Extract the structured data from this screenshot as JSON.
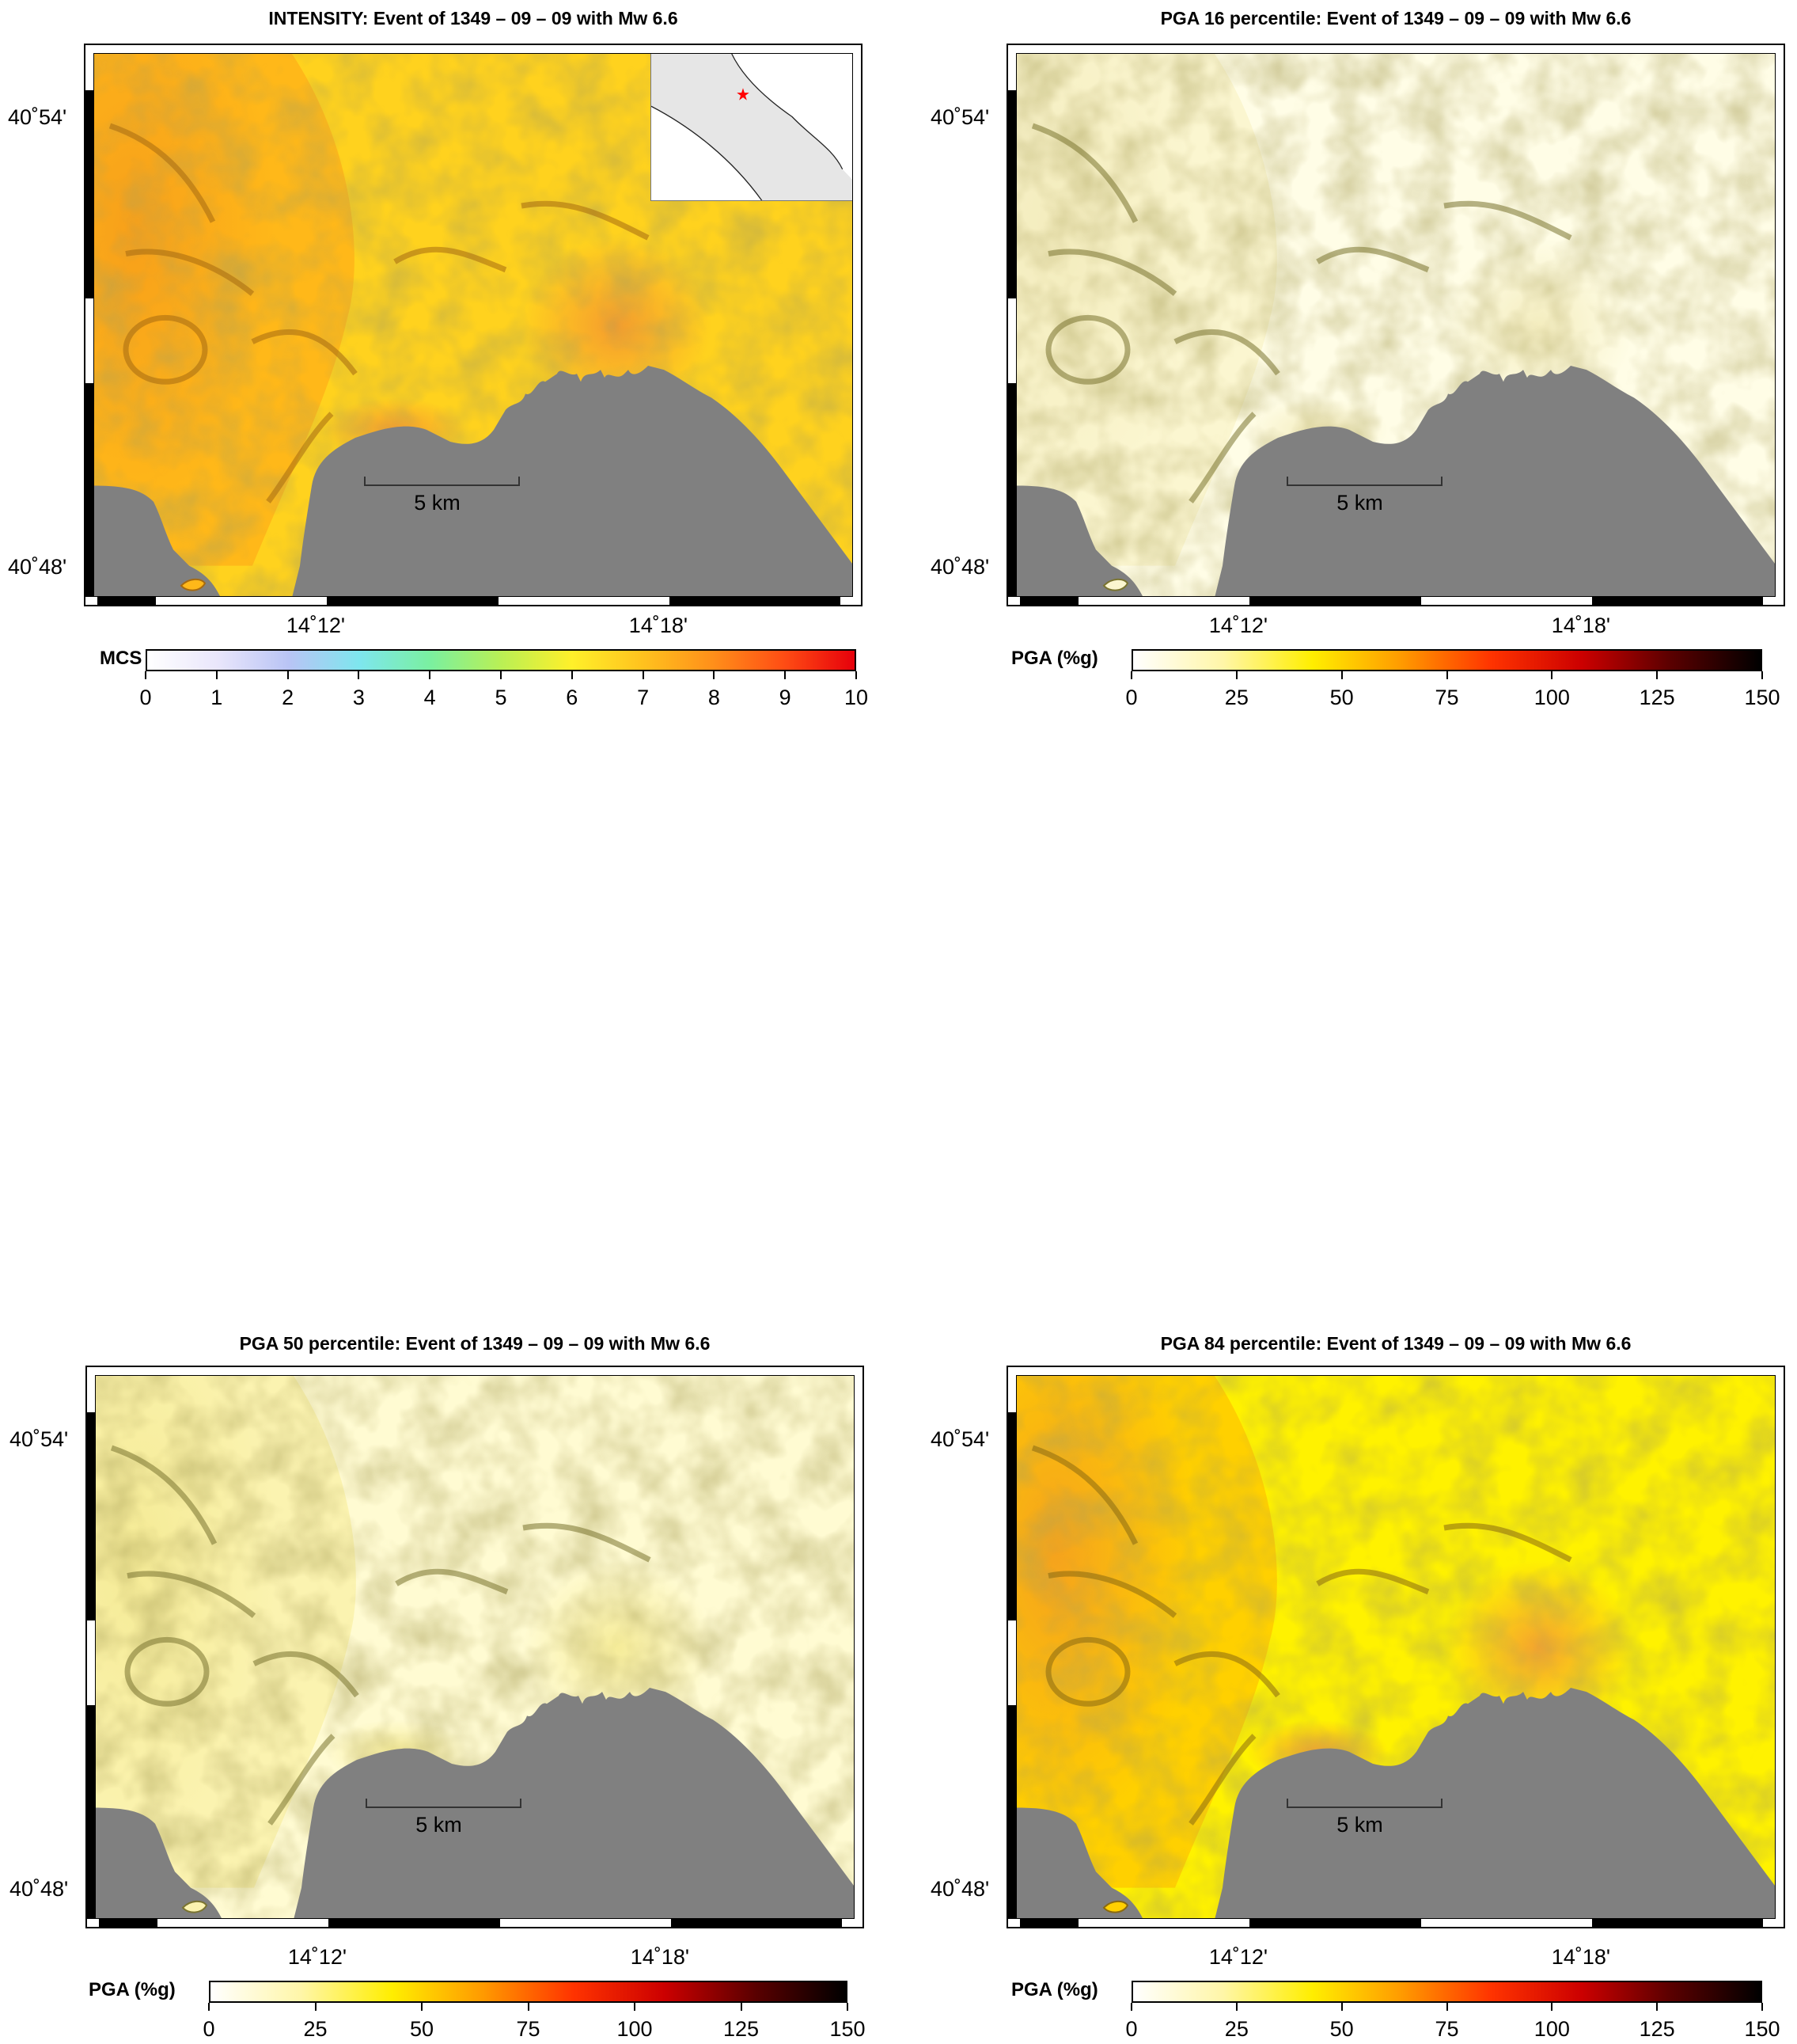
{
  "panels": [
    {
      "id": "intensity",
      "title": "INTENSITY: Event of 1349 – 09 – 09 with Mw 6.6",
      "lat_labels": [
        "40˚54'",
        "40˚48'"
      ],
      "lon_labels": [
        "14˚12'",
        "14˚18'"
      ],
      "scale_label": "5 km",
      "colorbar": {
        "title": "MCS",
        "ticks": [
          "0",
          "1",
          "2",
          "3",
          "4",
          "5",
          "6",
          "7",
          "8",
          "9",
          "10"
        ],
        "gradient": [
          "#ffffff",
          "#e9e6fb",
          "#b9c4f5",
          "#7ee6ee",
          "#7af0a0",
          "#b9f055",
          "#fff02a",
          "#ffc21e",
          "#ff8f1a",
          "#ff4d14",
          "#e6000b"
        ]
      },
      "palette": {
        "land_light": "#ffd21e",
        "land_mid": "#ffb819",
        "land_dark": "#f7a01a",
        "hot": "#f59a2e",
        "relief": "#a66a10"
      },
      "has_inset": true
    },
    {
      "id": "pga16",
      "title": "PGA 16 percentile: Event of 1349 – 09 – 09 with Mw 6.6",
      "lat_labels": [
        "40˚54'",
        "40˚48'"
      ],
      "lon_labels": [
        "14˚12'",
        "14˚18'"
      ],
      "scale_label": "5 km",
      "colorbar": {
        "title": "PGA (%g)",
        "ticks": [
          "0",
          "25",
          "50",
          "75",
          "100",
          "125",
          "150"
        ],
        "gradient": [
          "#ffffff",
          "#fff6a8",
          "#ffee00",
          "#ff9a00",
          "#ff3300",
          "#cc0000",
          "#5a0000",
          "#000000"
        ]
      },
      "palette": {
        "land_light": "#fffde6",
        "land_mid": "#fbf6d0",
        "land_dark": "#f3ecbd",
        "hot": "#f3ecbd",
        "relief": "#7a7430"
      },
      "has_inset": false
    },
    {
      "id": "pga50",
      "title": "PGA 50 percentile: Event of 1349 – 09 – 09 with Mw 6.6",
      "lat_labels": [
        "40˚54'",
        "40˚48'"
      ],
      "lon_labels": [
        "14˚12'",
        "14˚18'"
      ],
      "scale_label": "5 km",
      "colorbar": {
        "title": "PGA (%g)",
        "ticks": [
          "0",
          "25",
          "50",
          "75",
          "100",
          "125",
          "150"
        ],
        "gradient": [
          "#ffffff",
          "#fff6a8",
          "#ffee00",
          "#ff9a00",
          "#ff3300",
          "#cc0000",
          "#5a0000",
          "#000000"
        ]
      },
      "palette": {
        "land_light": "#fffbd2",
        "land_mid": "#fbf3b0",
        "land_dark": "#f5eb96",
        "hot": "#f5eb96",
        "relief": "#7a7430"
      },
      "has_inset": false
    },
    {
      "id": "pga84",
      "title": "PGA 84 percentile: Event of 1349 – 09 – 09 with Mw 6.6",
      "lat_labels": [
        "40˚54'",
        "40˚48'"
      ],
      "lon_labels": [
        "14˚12'",
        "14˚18'"
      ],
      "scale_label": "5 km",
      "colorbar": {
        "title": "PGA (%g)",
        "ticks": [
          "0",
          "25",
          "50",
          "75",
          "100",
          "125",
          "150"
        ],
        "gradient": [
          "#ffffff",
          "#fff6a8",
          "#ffee00",
          "#ff9a00",
          "#ff3300",
          "#cc0000",
          "#5a0000",
          "#000000"
        ]
      },
      "palette": {
        "land_light": "#fff200",
        "land_mid": "#ffd000",
        "land_dark": "#f5a31d",
        "hot": "#f5a030",
        "relief": "#8a6a10"
      },
      "has_inset": false
    }
  ],
  "colors": {
    "sea": "#808080",
    "frame": "#000000",
    "epicenter": "#ff0000"
  }
}
